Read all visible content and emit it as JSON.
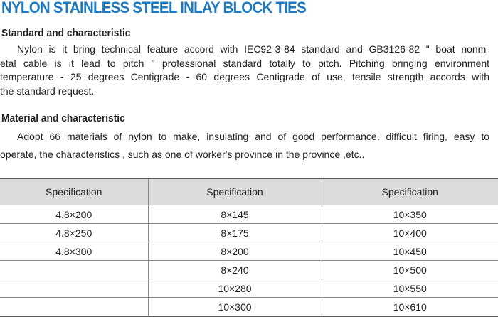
{
  "title": "NYLON STAINLESS STEEL INLAY BLOCK TIES",
  "sections": [
    {
      "heading": "Standard and characteristic",
      "lines": [
        "Nylon is it bring technical feature accord with IEC92-3-84 standard and GB3126-82 \" boat nonm-",
        "etal cable is it lead to pitch \" professional standard totally to  pitch. Pitching  bringing  environment",
        "temperature - 25 degrees Centigrade - 60 degrees Centigrade of use, tensile strength accords with",
        "the standard request."
      ]
    },
    {
      "heading": "Material and characteristic",
      "lines": [
        "Adopt 66 materials of nylon to make, insulating and of good performance, difficult firing, easy to",
        "operate, the characteristics , such as one of worker's  province in the province ,etc.."
      ]
    }
  ],
  "table": {
    "headers": [
      "Specification",
      "Specification",
      "Specification"
    ],
    "rows": [
      [
        "4.8×200",
        "8×145",
        "10×350"
      ],
      [
        "4.8×250",
        "8×175",
        "10×400"
      ],
      [
        "4.8×300",
        "8×200",
        "10×450"
      ],
      [
        "",
        "8×240",
        "10×500"
      ],
      [
        "",
        "10×280",
        "10×550"
      ],
      [
        "",
        "10×300",
        "10×610"
      ]
    ]
  }
}
